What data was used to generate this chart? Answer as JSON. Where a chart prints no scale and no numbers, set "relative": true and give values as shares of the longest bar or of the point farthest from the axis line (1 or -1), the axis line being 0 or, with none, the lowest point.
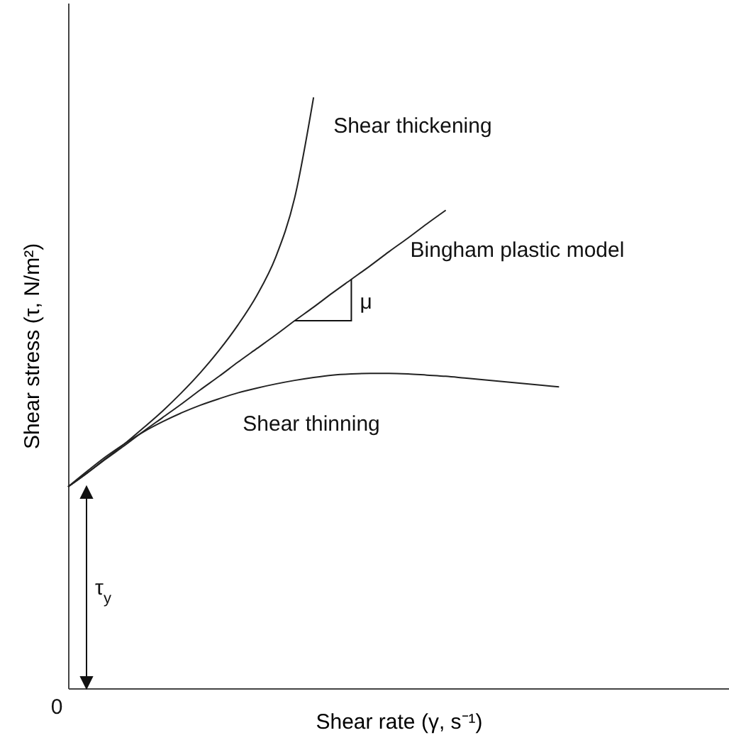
{
  "chart_data": {
    "type": "line",
    "relative": true,
    "xlabel": "Shear rate (γ, s⁻¹)",
    "ylabel": "Shear stress (τ, N/m²)",
    "categories": [
      null,
      null,
      null,
      null,
      null,
      null,
      null,
      null,
      null,
      null,
      null,
      null,
      null,
      null,
      null,
      null,
      null,
      null,
      null,
      null,
      null,
      null,
      null,
      null,
      null,
      null,
      null,
      null,
      null,
      null,
      null,
      null,
      null,
      null,
      null,
      null
    ],
    "series": [
      {
        "name": "Shear thickening",
        "color": "#222222",
        "values": [
          0.341,
          0.364,
          0.389,
          0.414,
          0.441,
          0.469,
          0.5,
          0.534,
          0.572,
          0.615,
          0.665,
          0.73,
          0.83,
          1,
          null,
          null,
          null,
          null,
          null,
          null,
          null,
          null,
          null,
          null,
          null,
          null,
          null,
          null,
          null,
          null,
          null,
          null,
          null,
          null,
          null,
          null
        ]
      },
      {
        "name": "Bingham plastic model",
        "color": "#222222",
        "values": [
          0.341,
          0.364,
          0.388,
          0.411,
          0.435,
          0.458,
          0.481,
          0.505,
          0.528,
          0.552,
          0.575,
          0.598,
          0.622,
          0.645,
          0.669,
          0.692,
          0.715,
          0.739,
          0.762,
          0.786,
          0.809,
          null,
          null,
          null,
          null,
          null,
          null,
          null,
          null,
          null,
          null,
          null,
          null,
          null,
          null,
          null
        ]
      },
      {
        "name": "Shear thinning",
        "color": "#222222",
        "values": [
          0.341,
          0.367,
          0.392,
          0.414,
          0.434,
          0.451,
          0.466,
          0.479,
          0.49,
          0.5,
          0.508,
          0.515,
          0.521,
          0.526,
          0.53,
          0.532,
          0.533,
          0.533,
          0.532,
          0.53,
          0.528,
          0.525,
          0.522,
          0.519,
          0.516,
          0.513,
          0.51,
          null,
          null,
          null,
          null,
          null,
          null,
          null,
          null,
          null
        ]
      }
    ],
    "annotations": [
      "0",
      "τ$_{y}$",
      "μ"
    ],
    "legend": false,
    "grid": false,
    "marker": "none",
    "line_style": "solid"
  }
}
